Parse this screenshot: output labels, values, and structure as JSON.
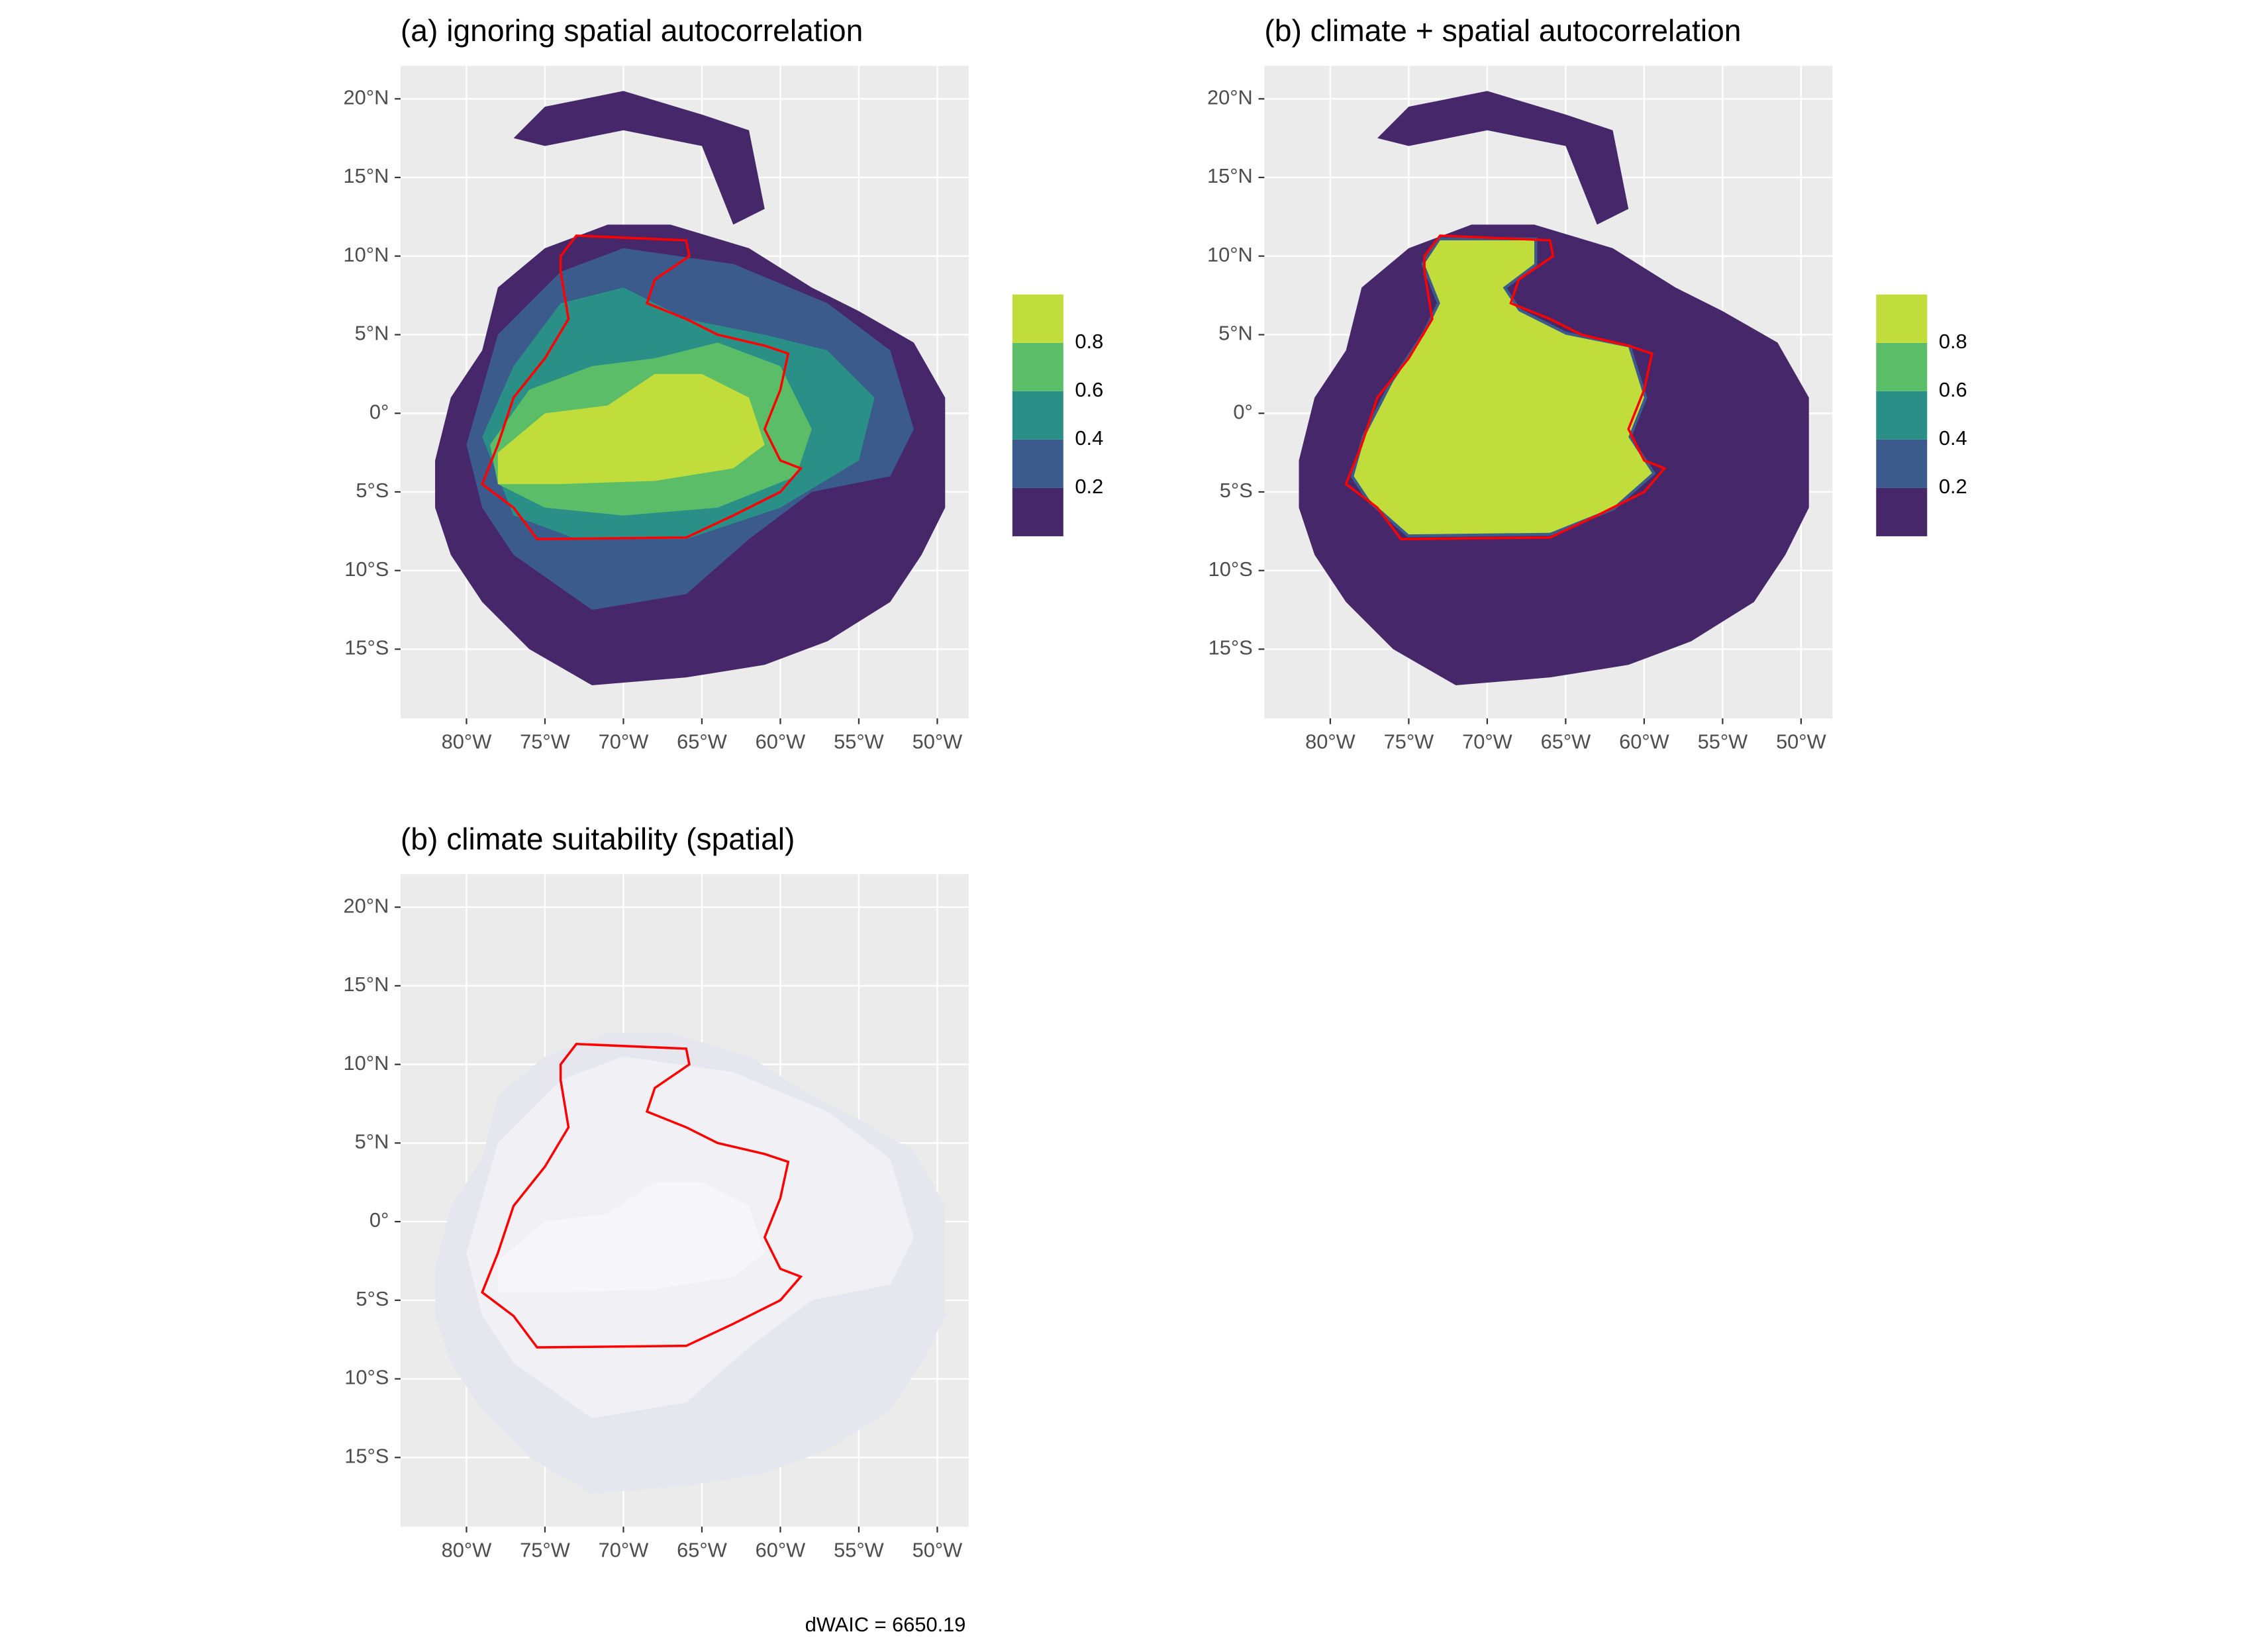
{
  "chart_data": [
    {
      "type": "map",
      "title": "(a) ignoring spatial autocorrelation",
      "xlim": [
        -84.2,
        -48
      ],
      "ylim": [
        -19.4,
        22.1
      ],
      "xticks": [
        {
          "value": -80,
          "label": "80°W"
        },
        {
          "value": -75,
          "label": "75°W"
        },
        {
          "value": -70,
          "label": "70°W"
        },
        {
          "value": -65,
          "label": "65°W"
        },
        {
          "value": -60,
          "label": "60°W"
        },
        {
          "value": -55,
          "label": "55°W"
        },
        {
          "value": -50,
          "label": "50°W"
        }
      ],
      "yticks": [
        {
          "value": 20,
          "label": "20°N"
        },
        {
          "value": 15,
          "label": "15°N"
        },
        {
          "value": 10,
          "label": "10°N"
        },
        {
          "value": 5,
          "label": "5°N"
        },
        {
          "value": 0,
          "label": "0°"
        },
        {
          "value": -5,
          "label": "5°S"
        },
        {
          "value": -10,
          "label": "10°S"
        },
        {
          "value": -15,
          "label": "15°S"
        }
      ],
      "legend": {
        "lim": [
          0,
          1
        ],
        "ticks": [
          0.2,
          0.4,
          0.6,
          0.8
        ],
        "colors": [
          "#46286a",
          "#3b5b8d",
          "#2a8f86",
          "#5cbd69",
          "#c1dd3b"
        ]
      }
    },
    {
      "type": "map",
      "title": "(b) climate + spatial autocorrelation",
      "xlim": [
        -84.2,
        -48
      ],
      "ylim": [
        -19.4,
        22.1
      ],
      "xticks": [
        {
          "value": -80,
          "label": "80°W"
        },
        {
          "value": -75,
          "label": "75°W"
        },
        {
          "value": -70,
          "label": "70°W"
        },
        {
          "value": -65,
          "label": "65°W"
        },
        {
          "value": -60,
          "label": "60°W"
        },
        {
          "value": -55,
          "label": "55°W"
        },
        {
          "value": -50,
          "label": "50°W"
        }
      ],
      "yticks": [
        {
          "value": 20,
          "label": "20°N"
        },
        {
          "value": 15,
          "label": "15°N"
        },
        {
          "value": 10,
          "label": "10°N"
        },
        {
          "value": 5,
          "label": "5°N"
        },
        {
          "value": 0,
          "label": "0°"
        },
        {
          "value": -5,
          "label": "5°S"
        },
        {
          "value": -10,
          "label": "10°S"
        },
        {
          "value": -15,
          "label": "15°S"
        }
      ],
      "legend": {
        "lim": [
          0,
          1
        ],
        "ticks": [
          0.2,
          0.4,
          0.6,
          0.8
        ],
        "colors": [
          "#46286a",
          "#3b5b8d",
          "#2a8f86",
          "#5cbd69",
          "#c1dd3b"
        ]
      }
    },
    {
      "type": "map",
      "title": "(b) climate suitability (spatial)",
      "xlim": [
        -84.2,
        -48
      ],
      "ylim": [
        -19.4,
        22.1
      ],
      "xticks": [
        {
          "value": -80,
          "label": "80°W"
        },
        {
          "value": -75,
          "label": "75°W"
        },
        {
          "value": -70,
          "label": "70°W"
        },
        {
          "value": -65,
          "label": "65°W"
        },
        {
          "value": -60,
          "label": "60°W"
        },
        {
          "value": -55,
          "label": "55°W"
        },
        {
          "value": -50,
          "label": "50°W"
        }
      ],
      "yticks": [
        {
          "value": 20,
          "label": "20°N"
        },
        {
          "value": 15,
          "label": "15°N"
        },
        {
          "value": 10,
          "label": "10°N"
        },
        {
          "value": 5,
          "label": "5°N"
        },
        {
          "value": 0,
          "label": "0°"
        },
        {
          "value": -5,
          "label": "5°S"
        },
        {
          "value": -10,
          "label": "10°S"
        },
        {
          "value": -15,
          "label": "15°S"
        }
      ],
      "annotation": "dWAIC = 6650.19"
    }
  ]
}
